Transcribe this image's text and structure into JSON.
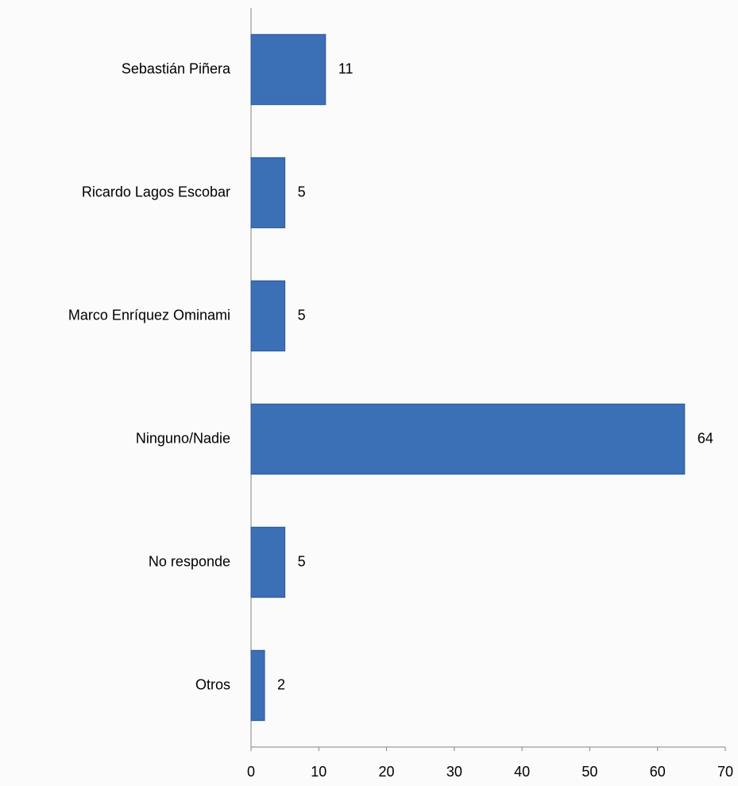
{
  "chart_data": {
    "type": "hbar",
    "categories": [
      "Sebastián Piñera",
      "Ricardo Lagos Escobar",
      "Marco Enríquez Ominami",
      "Ninguno/Nadie",
      "No responde",
      "Otros"
    ],
    "values": [
      11,
      5,
      5,
      64,
      5,
      2
    ],
    "color": "#3b6fb6",
    "xlim": [
      0,
      70
    ],
    "xticks": [
      0,
      10,
      20,
      30,
      40,
      50,
      60,
      70
    ]
  }
}
